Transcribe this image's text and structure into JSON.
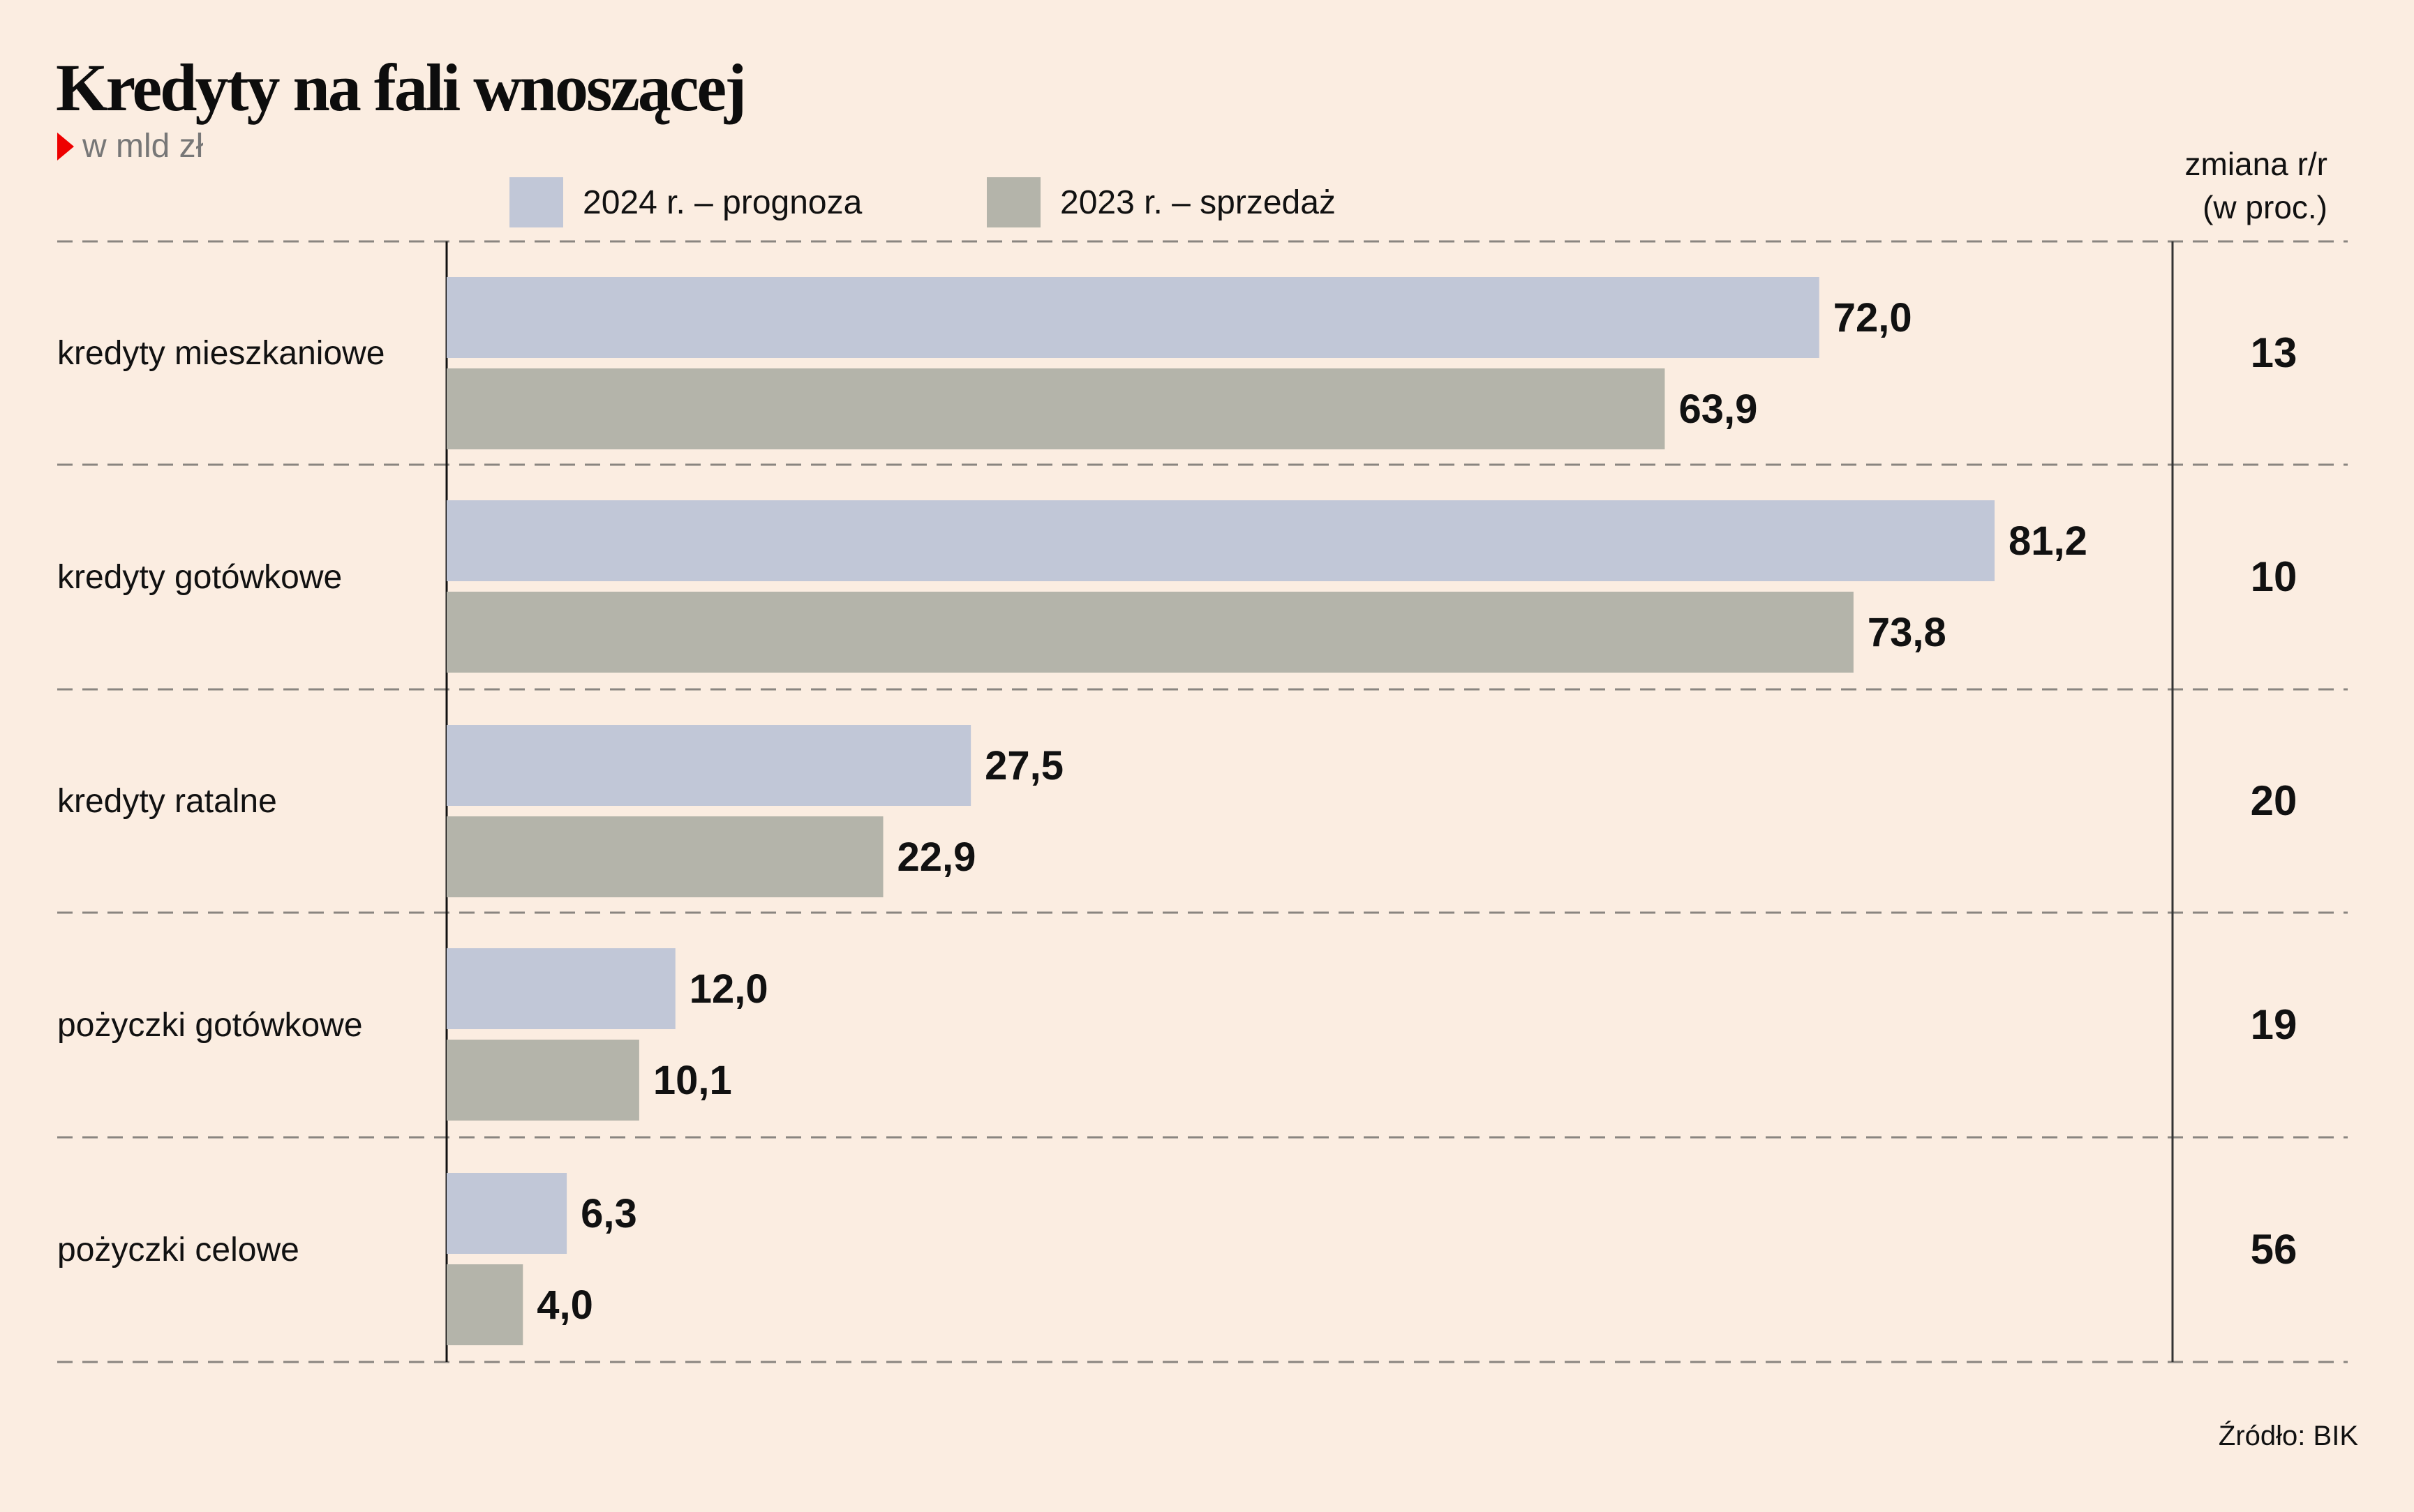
{
  "title": "Kredyty na fali wnoszącej",
  "subtitle": "w mld zł",
  "legend": [
    {
      "label": "2024 r. – prognoza",
      "color": "#c1c7d7"
    },
    {
      "label": "2023 r. – sprzedaż",
      "color": "#b4b4aa"
    }
  ],
  "change_header": {
    "line1": "zmiana r/r",
    "line2": "(w proc.)"
  },
  "source": "Źródło: BIK",
  "chart_data": {
    "type": "bar",
    "orientation": "horizontal",
    "title": "Kredyty na fali wnoszącej",
    "subtitle": "w mld zł",
    "categories": [
      "kredyty mieszkaniowe",
      "kredyty gotówkowe",
      "kredyty ratalne",
      "pożyczki gotówkowe",
      "pożyczki celowe"
    ],
    "series": [
      {
        "name": "2024 r. – prognoza",
        "values": [
          72.0,
          81.2,
          27.5,
          12.0,
          6.3
        ],
        "labels": [
          "72,0",
          "81,2",
          "27,5",
          "12,0",
          "6,3"
        ],
        "color": "#c1c7d7"
      },
      {
        "name": "2023 r. – sprzedaż",
        "values": [
          63.9,
          73.8,
          22.9,
          10.1,
          4.0
        ],
        "labels": [
          "63,9",
          "73,8",
          "22,9",
          "10,1",
          "4,0"
        ],
        "color": "#b4b4aa"
      }
    ],
    "change_yoy_percent": [
      13,
      10,
      20,
      19,
      56
    ],
    "change_column_title": "zmiana r/r (w proc.)",
    "xlim": [
      0,
      90
    ],
    "grid": "dashed separators between categories",
    "legend_position": "top",
    "xlabel": "",
    "ylabel": ""
  }
}
